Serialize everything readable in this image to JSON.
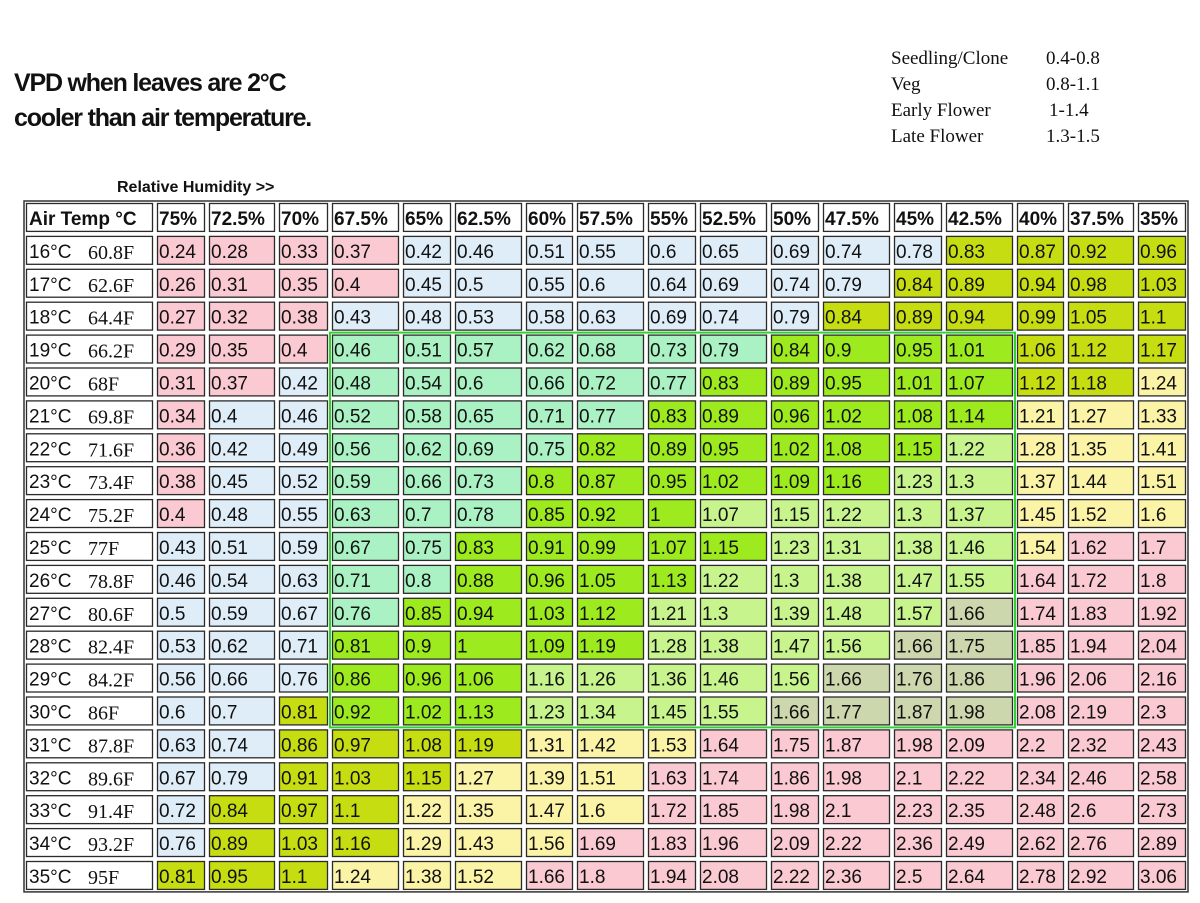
{
  "title": {
    "line1": "VPD when leaves are 2°C",
    "line2": "cooler than air temperature."
  },
  "legend": [
    {
      "label": "Seedling/Clone",
      "range": "0.4-0.8"
    },
    {
      "label": "Veg",
      "range": "0.8-1.1"
    },
    {
      "label": "Early Flower",
      "range": "1-1.4"
    },
    {
      "label": "Late Flower",
      "range": "1.3-1.5"
    }
  ],
  "colors": {
    "pink": "#fac9d2",
    "blue": "#deedf8",
    "olive": "#c6dd12",
    "yellow": "#fbf3a6",
    "mint": "#aaf2c4",
    "lime": "#9deb1e",
    "lightgreen": "#c8f48e",
    "gray": "#cdd7ad",
    "green_border": "#2fd12f"
  },
  "chart_data": {
    "type": "table",
    "axis_label": "Relative Humidity >>",
    "corner_label": "Air Temp °C",
    "columns": [
      "75%",
      "72.5%",
      "70%",
      "67.5%",
      "65%",
      "62.5%",
      "60%",
      "57.5%",
      "55%",
      "52.5%",
      "50%",
      "47.5%",
      "45%",
      "42.5%",
      "40%",
      "37.5%",
      "35%"
    ],
    "rows": [
      {
        "c": "16°C",
        "f": "60.8F",
        "v": [
          "0.24",
          "0.28",
          "0.33",
          "0.37",
          "0.42",
          "0.46",
          "0.51",
          "0.55",
          "0.6",
          "0.65",
          "0.69",
          "0.74",
          "0.78",
          "0.83",
          "0.87",
          "0.92",
          "0.96"
        ],
        "k": "PPPPBBBBBBBBBOOOO"
      },
      {
        "c": "17°C",
        "f": "62.6F",
        "v": [
          "0.26",
          "0.31",
          "0.35",
          "0.4",
          "0.45",
          "0.5",
          "0.55",
          "0.6",
          "0.64",
          "0.69",
          "0.74",
          "0.79",
          "0.84",
          "0.89",
          "0.94",
          "0.98",
          "1.03"
        ],
        "k": "PPPPBBBBBBBBOOOOO"
      },
      {
        "c": "18°C",
        "f": "64.4F",
        "v": [
          "0.27",
          "0.32",
          "0.38",
          "0.43",
          "0.48",
          "0.53",
          "0.58",
          "0.63",
          "0.69",
          "0.74",
          "0.79",
          "0.84",
          "0.89",
          "0.94",
          "0.99",
          "1.05",
          "1.1"
        ],
        "k": "PPPBBBBBBBBOOOOOO"
      },
      {
        "c": "19°C",
        "f": "66.2F",
        "v": [
          "0.29",
          "0.35",
          "0.4",
          "0.46",
          "0.51",
          "0.57",
          "0.62",
          "0.68",
          "0.73",
          "0.79",
          "0.84",
          "0.9",
          "0.95",
          "1.01",
          "1.06",
          "1.12",
          "1.17"
        ],
        "k": "PPPMMMMMMMLLLLOOO"
      },
      {
        "c": "20°C",
        "f": "68F",
        "v": [
          "0.31",
          "0.37",
          "0.42",
          "0.48",
          "0.54",
          "0.6",
          "0.66",
          "0.72",
          "0.77",
          "0.83",
          "0.89",
          "0.95",
          "1.01",
          "1.07",
          "1.12",
          "1.18",
          "1.24"
        ],
        "k": "PPBMMMMMMLLLLLOOY"
      },
      {
        "c": "21°C",
        "f": "69.8F",
        "v": [
          "0.34",
          "0.4",
          "0.46",
          "0.52",
          "0.58",
          "0.65",
          "0.71",
          "0.77",
          "0.83",
          "0.89",
          "0.96",
          "1.02",
          "1.08",
          "1.14",
          "1.21",
          "1.27",
          "1.33"
        ],
        "k": "PBBMMMMMLLLLLLYYY"
      },
      {
        "c": "22°C",
        "f": "71.6F",
        "v": [
          "0.36",
          "0.42",
          "0.49",
          "0.56",
          "0.62",
          "0.69",
          "0.75",
          "0.82",
          "0.89",
          "0.95",
          "1.02",
          "1.08",
          "1.15",
          "1.22",
          "1.28",
          "1.35",
          "1.41"
        ],
        "k": "PBBMMMMLLLLLLGYYY"
      },
      {
        "c": "23°C",
        "f": "73.4F",
        "v": [
          "0.38",
          "0.45",
          "0.52",
          "0.59",
          "0.66",
          "0.73",
          "0.8",
          "0.87",
          "0.95",
          "1.02",
          "1.09",
          "1.16",
          "1.23",
          "1.3",
          "1.37",
          "1.44",
          "1.51"
        ],
        "k": "PBBMMMLLLLLLGGYYY"
      },
      {
        "c": "24°C",
        "f": "75.2F",
        "v": [
          "0.4",
          "0.48",
          "0.55",
          "0.63",
          "0.7",
          "0.78",
          "0.85",
          "0.92",
          "1",
          "1.07",
          "1.15",
          "1.22",
          "1.3",
          "1.37",
          "1.45",
          "1.52",
          "1.6"
        ],
        "k": "PBBMMMLLLGGGGGYYY"
      },
      {
        "c": "25°C",
        "f": "77F",
        "v": [
          "0.43",
          "0.51",
          "0.59",
          "0.67",
          "0.75",
          "0.83",
          "0.91",
          "0.99",
          "1.07",
          "1.15",
          "1.23",
          "1.31",
          "1.38",
          "1.46",
          "1.54",
          "1.62",
          "1.7"
        ],
        "k": "BBBMMLLLLLGGGGYPP"
      },
      {
        "c": "26°C",
        "f": "78.8F",
        "v": [
          "0.46",
          "0.54",
          "0.63",
          "0.71",
          "0.8",
          "0.88",
          "0.96",
          "1.05",
          "1.13",
          "1.22",
          "1.3",
          "1.38",
          "1.47",
          "1.55",
          "1.64",
          "1.72",
          "1.8"
        ],
        "k": "BBBMMLLLLGGGGGPPP"
      },
      {
        "c": "27°C",
        "f": "80.6F",
        "v": [
          "0.5",
          "0.59",
          "0.67",
          "0.76",
          "0.85",
          "0.94",
          "1.03",
          "1.12",
          "1.21",
          "1.3",
          "1.39",
          "1.48",
          "1.57",
          "1.66",
          "1.74",
          "1.83",
          "1.92"
        ],
        "k": "BBBMLLLLGGGGGXPPP"
      },
      {
        "c": "28°C",
        "f": "82.4F",
        "v": [
          "0.53",
          "0.62",
          "0.71",
          "0.81",
          "0.9",
          "1",
          "1.09",
          "1.19",
          "1.28",
          "1.38",
          "1.47",
          "1.56",
          "1.66",
          "1.75",
          "1.85",
          "1.94",
          "2.04"
        ],
        "k": "BBBLLLLLGGGGXXPPP"
      },
      {
        "c": "29°C",
        "f": "84.2F",
        "v": [
          "0.56",
          "0.66",
          "0.76",
          "0.86",
          "0.96",
          "1.06",
          "1.16",
          "1.26",
          "1.36",
          "1.46",
          "1.56",
          "1.66",
          "1.76",
          "1.86",
          "1.96",
          "2.06",
          "2.16"
        ],
        "k": "BBBLLLGGGGGXXXPPP"
      },
      {
        "c": "30°C",
        "f": "86F",
        "v": [
          "0.6",
          "0.7",
          "0.81",
          "0.92",
          "1.02",
          "1.13",
          "1.23",
          "1.34",
          "1.45",
          "1.55",
          "1.66",
          "1.77",
          "1.87",
          "1.98",
          "2.08",
          "2.19",
          "2.3"
        ],
        "k": "BBOLLLGGGGXXXXPPP"
      },
      {
        "c": "31°C",
        "f": "87.8F",
        "v": [
          "0.63",
          "0.74",
          "0.86",
          "0.97",
          "1.08",
          "1.19",
          "1.31",
          "1.42",
          "1.53",
          "1.64",
          "1.75",
          "1.87",
          "1.98",
          "2.09",
          "2.2",
          "2.32",
          "2.43"
        ],
        "k": "BBOOOOYYYPPPPPPPP"
      },
      {
        "c": "32°C",
        "f": "89.6F",
        "v": [
          "0.67",
          "0.79",
          "0.91",
          "1.03",
          "1.15",
          "1.27",
          "1.39",
          "1.51",
          "1.63",
          "1.74",
          "1.86",
          "1.98",
          "2.1",
          "2.22",
          "2.34",
          "2.46",
          "2.58"
        ],
        "k": "BBOOOYYYPPPPPPPPP"
      },
      {
        "c": "33°C",
        "f": "91.4F",
        "v": [
          "0.72",
          "0.84",
          "0.97",
          "1.1",
          "1.22",
          "1.35",
          "1.47",
          "1.6",
          "1.72",
          "1.85",
          "1.98",
          "2.1",
          "2.23",
          "2.35",
          "2.48",
          "2.6",
          "2.73"
        ],
        "k": "BOOOYYYYPPPPPPPPP"
      },
      {
        "c": "34°C",
        "f": "93.2F",
        "v": [
          "0.76",
          "0.89",
          "1.03",
          "1.16",
          "1.29",
          "1.43",
          "1.56",
          "1.69",
          "1.83",
          "1.96",
          "2.09",
          "2.22",
          "2.36",
          "2.49",
          "2.62",
          "2.76",
          "2.89"
        ],
        "k": "BOOOYYYPPPPPPPPPP"
      },
      {
        "c": "35°C",
        "f": "95F",
        "v": [
          "0.81",
          "0.95",
          "1.1",
          "1.24",
          "1.38",
          "1.52",
          "1.66",
          "1.8",
          "1.94",
          "2.08",
          "2.22",
          "2.36",
          "2.5",
          "2.64",
          "2.78",
          "2.92",
          "3.06"
        ],
        "k": "OOOYYYPPPPPPPPPPP"
      }
    ]
  }
}
